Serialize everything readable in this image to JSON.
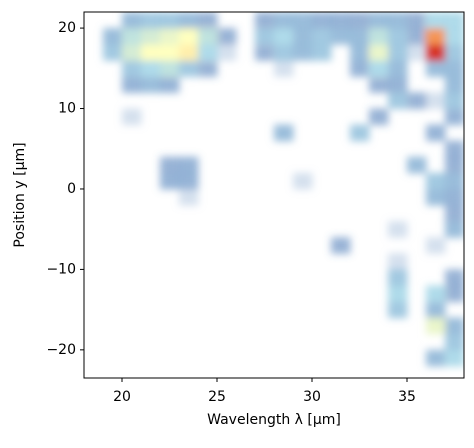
{
  "chart_data": {
    "type": "heatmap",
    "x_label": "Wavelength λ [μm]",
    "y_label": "Position y [μm]",
    "x": [
      18.5,
      19.5,
      20.5,
      21.5,
      22.5,
      23.5,
      24.5,
      25.5,
      26.5,
      27.5,
      28.5,
      29.5,
      30.5,
      31.5,
      32.5,
      33.5,
      34.5,
      35.5,
      36.5,
      37.5
    ],
    "y": [
      -21,
      -19,
      -17,
      -15,
      -13,
      -11,
      -9,
      -7,
      -5,
      -3,
      -1,
      1,
      3,
      5,
      7,
      9,
      11,
      13,
      15,
      17,
      19,
      21
    ],
    "z": [
      [
        0,
        0,
        0,
        0,
        0,
        0,
        0,
        0,
        0,
        0,
        0,
        0,
        0,
        0,
        0,
        0,
        0,
        0,
        0.2,
        0.3
      ],
      [
        0,
        0,
        0,
        0,
        0,
        0,
        0,
        0,
        0,
        0,
        0,
        0,
        0,
        0,
        0,
        0,
        0,
        0,
        0,
        0.25
      ],
      [
        0,
        0,
        0,
        0,
        0,
        0,
        0,
        0,
        0,
        0,
        0,
        0,
        0,
        0,
        0,
        0,
        0,
        0,
        0.45,
        0.2
      ],
      [
        0,
        0,
        0,
        0,
        0,
        0,
        0,
        0,
        0,
        0,
        0,
        0,
        0,
        0,
        0,
        0,
        0.25,
        0,
        0.2,
        0
      ],
      [
        0,
        0,
        0,
        0,
        0,
        0,
        0,
        0,
        0,
        0,
        0,
        0,
        0,
        0,
        0,
        0,
        0.3,
        0,
        0.3,
        0.1
      ],
      [
        0,
        0,
        0,
        0,
        0,
        0,
        0,
        0,
        0,
        0,
        0,
        0,
        0,
        0,
        0,
        0,
        0.25,
        0,
        0,
        0.1
      ],
      [
        0,
        0,
        0,
        0,
        0,
        0,
        0,
        0,
        0,
        0,
        0,
        0,
        0,
        0,
        0,
        0,
        0.05,
        0,
        0,
        0
      ],
      [
        0,
        0,
        0,
        0,
        0,
        0,
        0,
        0,
        0,
        0,
        0,
        0,
        0,
        0.1,
        0,
        0,
        0,
        0,
        0.05,
        0
      ],
      [
        0,
        0,
        0,
        0,
        0,
        0,
        0,
        0,
        0,
        0,
        0,
        0,
        0,
        0,
        0,
        0,
        0.05,
        0,
        0,
        0.2
      ],
      [
        0,
        0,
        0,
        0,
        0,
        0,
        0,
        0,
        0,
        0,
        0,
        0,
        0,
        0,
        0,
        0,
        0,
        0,
        0,
        0.1
      ],
      [
        0,
        0,
        0,
        0,
        0,
        0.05,
        0,
        0,
        0,
        0,
        0,
        0,
        0,
        0,
        0,
        0,
        0,
        0,
        0.2,
        0.15
      ],
      [
        0,
        0,
        0,
        0,
        0.15,
        0.15,
        0,
        0,
        0,
        0,
        0,
        0.05,
        0,
        0,
        0,
        0,
        0,
        0,
        0.25,
        0.2
      ],
      [
        0,
        0,
        0,
        0,
        0.1,
        0.15,
        0,
        0,
        0,
        0,
        0,
        0,
        0,
        0,
        0,
        0,
        0,
        0.2,
        0,
        0.1
      ],
      [
        0,
        0,
        0,
        0,
        0,
        0,
        0,
        0,
        0,
        0,
        0,
        0,
        0,
        0,
        0,
        0,
        0,
        0,
        0,
        0.1
      ],
      [
        0,
        0,
        0,
        0,
        0,
        0,
        0,
        0,
        0,
        0,
        0.2,
        0,
        0,
        0,
        0.25,
        0,
        0,
        0,
        0.15,
        0
      ],
      [
        0,
        0,
        0.05,
        0,
        0,
        0,
        0,
        0,
        0,
        0,
        0,
        0,
        0,
        0,
        0,
        0.1,
        0,
        0,
        0,
        0.15
      ],
      [
        0,
        0,
        0,
        0,
        0,
        0,
        0,
        0,
        0,
        0,
        0,
        0,
        0,
        0,
        0,
        0,
        0.25,
        0.1,
        0.05,
        0.25
      ],
      [
        0,
        0,
        0.15,
        0.2,
        0.15,
        0,
        0,
        0,
        0,
        0,
        0,
        0,
        0,
        0,
        0,
        0.1,
        0.15,
        0,
        0,
        0.2
      ],
      [
        0,
        0,
        0.25,
        0.3,
        0.35,
        0.25,
        0.1,
        0,
        0,
        0,
        0.05,
        0,
        0,
        0,
        0.15,
        0.3,
        0.2,
        0,
        0.2,
        0.2
      ],
      [
        0,
        0.25,
        0.4,
        0.5,
        0.5,
        0.55,
        0.3,
        0.05,
        0,
        0.1,
        0.25,
        0.2,
        0.25,
        0,
        0.2,
        0.45,
        0.25,
        0.05,
        1,
        0.25
      ],
      [
        0,
        0.2,
        0.35,
        0.4,
        0.45,
        0.5,
        0.35,
        0.1,
        0,
        0.25,
        0.3,
        0.2,
        0.25,
        0.2,
        0.2,
        0.35,
        0.25,
        0.1,
        0.8,
        0.3
      ],
      [
        0,
        0,
        0.2,
        0.25,
        0.25,
        0.2,
        0.1,
        0,
        0,
        0.1,
        0.2,
        0.2,
        0.15,
        0.15,
        0.1,
        0.2,
        0.2,
        0.1,
        0.3,
        0.3
      ]
    ],
    "xlim": [
      18,
      38
    ],
    "ylim": [
      -23.5,
      22
    ],
    "xticks": [
      20,
      25,
      30,
      35
    ],
    "yticks": [
      {
        "value": -20,
        "label": "−20"
      },
      {
        "value": -10,
        "label": "−10"
      },
      0,
      10,
      20
    ],
    "grid": false
  }
}
